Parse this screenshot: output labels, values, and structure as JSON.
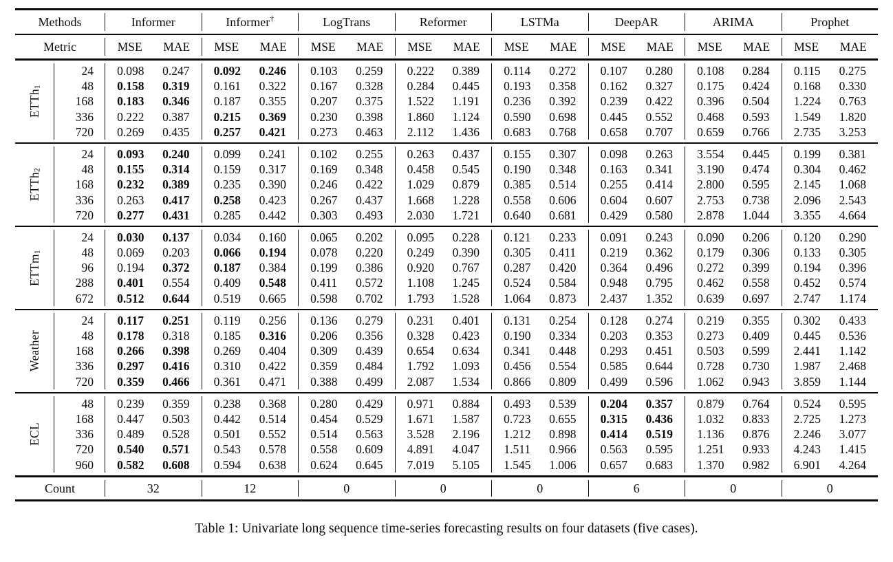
{
  "caption": "Table 1: Univariate long sequence time-series forecasting results on four datasets (five cases).",
  "table": {
    "methods_label": "Methods",
    "metric_label": "Metric",
    "count_label": "Count",
    "mse_label": "MSE",
    "mae_label": "MAE",
    "methods": [
      {
        "name": "Informer",
        "sup": ""
      },
      {
        "name": "Informer",
        "sup": "†"
      },
      {
        "name": "LogTrans",
        "sup": ""
      },
      {
        "name": "Reformer",
        "sup": ""
      },
      {
        "name": "LSTMa",
        "sup": ""
      },
      {
        "name": "DeepAR",
        "sup": ""
      },
      {
        "name": "ARIMA",
        "sup": ""
      },
      {
        "name": "Prophet",
        "sup": ""
      }
    ],
    "counts": [
      "32",
      "12",
      "0",
      "0",
      "0",
      "6",
      "0",
      "0"
    ],
    "bold_marker": "*",
    "groups": [
      {
        "dataset": "ETTh",
        "sub": "1",
        "rows": [
          {
            "horizon": "24",
            "cells": [
              "0.098",
              "0.247",
              "*0.092",
              "*0.246",
              "0.103",
              "0.259",
              "0.222",
              "0.389",
              "0.114",
              "0.272",
              "0.107",
              "0.280",
              "0.108",
              "0.284",
              "0.115",
              "0.275"
            ]
          },
          {
            "horizon": "48",
            "cells": [
              "*0.158",
              "*0.319",
              "0.161",
              "0.322",
              "0.167",
              "0.328",
              "0.284",
              "0.445",
              "0.193",
              "0.358",
              "0.162",
              "0.327",
              "0.175",
              "0.424",
              "0.168",
              "0.330"
            ]
          },
          {
            "horizon": "168",
            "cells": [
              "*0.183",
              "*0.346",
              "0.187",
              "0.355",
              "0.207",
              "0.375",
              "1.522",
              "1.191",
              "0.236",
              "0.392",
              "0.239",
              "0.422",
              "0.396",
              "0.504",
              "1.224",
              "0.763"
            ]
          },
          {
            "horizon": "336",
            "cells": [
              "0.222",
              "0.387",
              "*0.215",
              "*0.369",
              "0.230",
              "0.398",
              "1.860",
              "1.124",
              "0.590",
              "0.698",
              "0.445",
              "0.552",
              "0.468",
              "0.593",
              "1.549",
              "1.820"
            ]
          },
          {
            "horizon": "720",
            "cells": [
              "0.269",
              "0.435",
              "*0.257",
              "*0.421",
              "0.273",
              "0.463",
              "2.112",
              "1.436",
              "0.683",
              "0.768",
              "0.658",
              "0.707",
              "0.659",
              "0.766",
              "2.735",
              "3.253"
            ]
          }
        ]
      },
      {
        "dataset": "ETTh",
        "sub": "2",
        "rows": [
          {
            "horizon": "24",
            "cells": [
              "*0.093",
              "*0.240",
              "0.099",
              "0.241",
              "0.102",
              "0.255",
              "0.263",
              "0.437",
              "0.155",
              "0.307",
              "0.098",
              "0.263",
              "3.554",
              "0.445",
              "0.199",
              "0.381"
            ]
          },
          {
            "horizon": "48",
            "cells": [
              "*0.155",
              "*0.314",
              "0.159",
              "0.317",
              "0.169",
              "0.348",
              "0.458",
              "0.545",
              "0.190",
              "0.348",
              "0.163",
              "0.341",
              "3.190",
              "0.474",
              "0.304",
              "0.462"
            ]
          },
          {
            "horizon": "168",
            "cells": [
              "*0.232",
              "*0.389",
              "0.235",
              "0.390",
              "0.246",
              "0.422",
              "1.029",
              "0.879",
              "0.385",
              "0.514",
              "0.255",
              "0.414",
              "2.800",
              "0.595",
              "2.145",
              "1.068"
            ]
          },
          {
            "horizon": "336",
            "cells": [
              "0.263",
              "*0.417",
              "*0.258",
              "0.423",
              "0.267",
              "0.437",
              "1.668",
              "1.228",
              "0.558",
              "0.606",
              "0.604",
              "0.607",
              "2.753",
              "0.738",
              "2.096",
              "2.543"
            ]
          },
          {
            "horizon": "720",
            "cells": [
              "*0.277",
              "*0.431",
              "0.285",
              "0.442",
              "0.303",
              "0.493",
              "2.030",
              "1.721",
              "0.640",
              "0.681",
              "0.429",
              "0.580",
              "2.878",
              "1.044",
              "3.355",
              "4.664"
            ]
          }
        ]
      },
      {
        "dataset": "ETTm",
        "sub": "1",
        "rows": [
          {
            "horizon": "24",
            "cells": [
              "*0.030",
              "*0.137",
              "0.034",
              "0.160",
              "0.065",
              "0.202",
              "0.095",
              "0.228",
              "0.121",
              "0.233",
              "0.091",
              "0.243",
              "0.090",
              "0.206",
              "0.120",
              "0.290"
            ]
          },
          {
            "horizon": "48",
            "cells": [
              "0.069",
              "0.203",
              "*0.066",
              "*0.194",
              "0.078",
              "0.220",
              "0.249",
              "0.390",
              "0.305",
              "0.411",
              "0.219",
              "0.362",
              "0.179",
              "0.306",
              "0.133",
              "0.305"
            ]
          },
          {
            "horizon": "96",
            "cells": [
              "0.194",
              "*0.372",
              "*0.187",
              "0.384",
              "0.199",
              "0.386",
              "0.920",
              "0.767",
              "0.287",
              "0.420",
              "0.364",
              "0.496",
              "0.272",
              "0.399",
              "0.194",
              "0.396"
            ]
          },
          {
            "horizon": "288",
            "cells": [
              "*0.401",
              "0.554",
              "0.409",
              "*0.548",
              "0.411",
              "0.572",
              "1.108",
              "1.245",
              "0.524",
              "0.584",
              "0.948",
              "0.795",
              "0.462",
              "0.558",
              "0.452",
              "0.574"
            ]
          },
          {
            "horizon": "672",
            "cells": [
              "*0.512",
              "*0.644",
              "0.519",
              "0.665",
              "0.598",
              "0.702",
              "1.793",
              "1.528",
              "1.064",
              "0.873",
              "2.437",
              "1.352",
              "0.639",
              "0.697",
              "2.747",
              "1.174"
            ]
          }
        ]
      },
      {
        "dataset": "Weather",
        "sub": "",
        "rows": [
          {
            "horizon": "24",
            "cells": [
              "*0.117",
              "*0.251",
              "0.119",
              "0.256",
              "0.136",
              "0.279",
              "0.231",
              "0.401",
              "0.131",
              "0.254",
              "0.128",
              "0.274",
              "0.219",
              "0.355",
              "0.302",
              "0.433"
            ]
          },
          {
            "horizon": "48",
            "cells": [
              "*0.178",
              "0.318",
              "0.185",
              "*0.316",
              "0.206",
              "0.356",
              "0.328",
              "0.423",
              "0.190",
              "0.334",
              "0.203",
              "0.353",
              "0.273",
              "0.409",
              "0.445",
              "0.536"
            ]
          },
          {
            "horizon": "168",
            "cells": [
              "*0.266",
              "*0.398",
              "0.269",
              "0.404",
              "0.309",
              "0.439",
              "0.654",
              "0.634",
              "0.341",
              "0.448",
              "0.293",
              "0.451",
              "0.503",
              "0.599",
              "2.441",
              "1.142"
            ]
          },
          {
            "horizon": "336",
            "cells": [
              "*0.297",
              "*0.416",
              "0.310",
              "0.422",
              "0.359",
              "0.484",
              "1.792",
              "1.093",
              "0.456",
              "0.554",
              "0.585",
              "0.644",
              "0.728",
              "0.730",
              "1.987",
              "2.468"
            ]
          },
          {
            "horizon": "720",
            "cells": [
              "*0.359",
              "*0.466",
              "0.361",
              "0.471",
              "0.388",
              "0.499",
              "2.087",
              "1.534",
              "0.866",
              "0.809",
              "0.499",
              "0.596",
              "1.062",
              "0.943",
              "3.859",
              "1.144"
            ]
          }
        ]
      },
      {
        "dataset": "ECL",
        "sub": "",
        "rows": [
          {
            "horizon": "48",
            "cells": [
              "0.239",
              "0.359",
              "0.238",
              "0.368",
              "0.280",
              "0.429",
              "0.971",
              "0.884",
              "0.493",
              "0.539",
              "*0.204",
              "*0.357",
              "0.879",
              "0.764",
              "0.524",
              "0.595"
            ]
          },
          {
            "horizon": "168",
            "cells": [
              "0.447",
              "0.503",
              "0.442",
              "0.514",
              "0.454",
              "0.529",
              "1.671",
              "1.587",
              "0.723",
              "0.655",
              "*0.315",
              "*0.436",
              "1.032",
              "0.833",
              "2.725",
              "1.273"
            ]
          },
          {
            "horizon": "336",
            "cells": [
              "0.489",
              "0.528",
              "0.501",
              "0.552",
              "0.514",
              "0.563",
              "3.528",
              "2.196",
              "1.212",
              "0.898",
              "*0.414",
              "*0.519",
              "1.136",
              "0.876",
              "2.246",
              "3.077"
            ]
          },
          {
            "horizon": "720",
            "cells": [
              "*0.540",
              "*0.571",
              "0.543",
              "0.578",
              "0.558",
              "0.609",
              "4.891",
              "4.047",
              "1.511",
              "0.966",
              "0.563",
              "0.595",
              "1.251",
              "0.933",
              "4.243",
              "1.415"
            ]
          },
          {
            "horizon": "960",
            "cells": [
              "*0.582",
              "*0.608",
              "0.594",
              "0.638",
              "0.624",
              "0.645",
              "7.019",
              "5.105",
              "1.545",
              "1.006",
              "0.657",
              "0.683",
              "1.370",
              "0.982",
              "6.901",
              "4.264"
            ]
          }
        ]
      }
    ]
  }
}
